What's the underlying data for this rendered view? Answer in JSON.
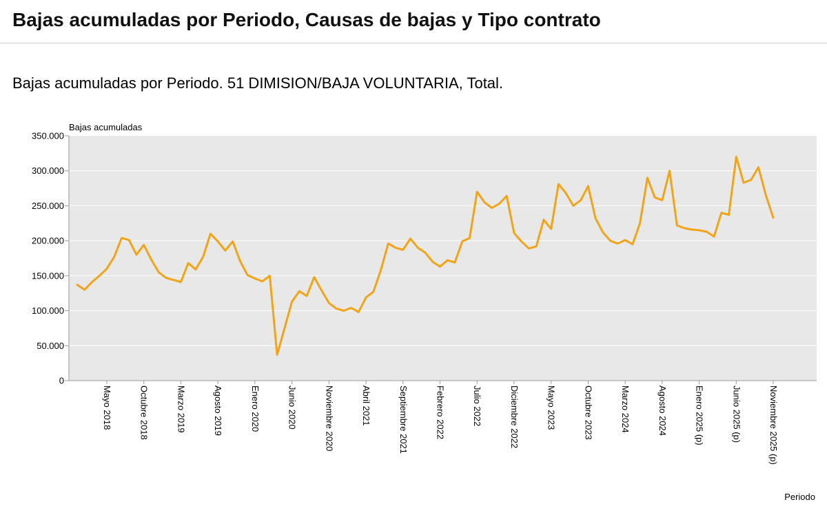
{
  "page": {
    "title": "Bajas acumuladas por Periodo, Causas de bajas y Tipo contrato",
    "subtitle": "Bajas acumuladas por Periodo. 51 DIMISION/BAJA VOLUNTARIA, Total."
  },
  "chart_data": {
    "type": "line",
    "title": "Bajas acumuladas por Periodo. 51 DIMISION/BAJA VOLUNTARIA, Total.",
    "ylabel": "Bajas acumuladas",
    "xlabel": "Periodo",
    "ylim": [
      0,
      350000
    ],
    "ytick_step": 50000,
    "ytick_labels": [
      "0",
      "50.000",
      "100.000",
      "150.000",
      "200.000",
      "250.000",
      "300.000",
      "350.000"
    ],
    "grid": "horizontal white gridlines on gray plot background",
    "legend": "none",
    "line_color": "#f2a416",
    "plot_bg": "#e8e8e8",
    "tick_every": 5,
    "first_tick_index": 4,
    "tick_labels": [
      "Mayo 2018",
      "Octubre 2018",
      "Marzo 2019",
      "Agosto 2019",
      "Enero 2020",
      "Junio 2020",
      "Noviembre 2020",
      "Abril 2021",
      "Septiembre 2021",
      "Febrero 2022",
      "Julio 2022",
      "Diciembre 2022",
      "Mayo 2023",
      "Octubre 2023",
      "Marzo 2024",
      "Agosto 2024",
      "Enero 2025 (p)",
      "Junio 2025 (p)",
      "Noviembre 2025 (p)"
    ],
    "x": [
      "Enero 2018",
      "Febrero 2018",
      "Marzo 2018",
      "Abril 2018",
      "Mayo 2018",
      "Junio 2018",
      "Julio 2018",
      "Agosto 2018",
      "Septiembre 2018",
      "Octubre 2018",
      "Noviembre 2018",
      "Diciembre 2018",
      "Enero 2019",
      "Febrero 2019",
      "Marzo 2019",
      "Abril 2019",
      "Mayo 2019",
      "Junio 2019",
      "Julio 2019",
      "Agosto 2019",
      "Septiembre 2019",
      "Octubre 2019",
      "Noviembre 2019",
      "Diciembre 2019",
      "Enero 2020",
      "Febrero 2020",
      "Marzo 2020",
      "Abril 2020",
      "Mayo 2020",
      "Junio 2020",
      "Julio 2020",
      "Agosto 2020",
      "Septiembre 2020",
      "Octubre 2020",
      "Noviembre 2020",
      "Diciembre 2020",
      "Enero 2021",
      "Febrero 2021",
      "Marzo 2021",
      "Abril 2021",
      "Mayo 2021",
      "Junio 2021",
      "Julio 2021",
      "Agosto 2021",
      "Septiembre 2021",
      "Octubre 2021",
      "Noviembre 2021",
      "Diciembre 2021",
      "Enero 2022",
      "Febrero 2022",
      "Marzo 2022",
      "Abril 2022",
      "Mayo 2022",
      "Junio 2022",
      "Julio 2022",
      "Agosto 2022",
      "Septiembre 2022",
      "Octubre 2022",
      "Noviembre 2022",
      "Diciembre 2022",
      "Enero 2023",
      "Febrero 2023",
      "Marzo 2023",
      "Abril 2023",
      "Mayo 2023",
      "Junio 2023",
      "Julio 2023",
      "Agosto 2023",
      "Septiembre 2023",
      "Octubre 2023",
      "Noviembre 2023",
      "Diciembre 2023",
      "Enero 2024",
      "Febrero 2024",
      "Marzo 2024",
      "Abril 2024",
      "Mayo 2024",
      "Junio 2024",
      "Julio 2024",
      "Agosto 2024",
      "Septiembre 2024",
      "Octubre 2024",
      "Noviembre 2024",
      "Diciembre 2024",
      "Enero 2025 (p)",
      "Febrero 2025 (p)",
      "Marzo 2025 (p)",
      "Abril 2025 (p)",
      "Mayo 2025 (p)",
      "Junio 2025 (p)",
      "Julio 2025 (p)",
      "Agosto 2025 (p)",
      "Septiembre 2025 (p)",
      "Octubre 2025 (p)",
      "Noviembre 2025 (p)"
    ],
    "values": [
      137000,
      130000,
      141000,
      150000,
      160000,
      177000,
      204000,
      201000,
      180000,
      194000,
      173000,
      155000,
      147000,
      144000,
      141000,
      168000,
      159000,
      177000,
      210000,
      199000,
      186000,
      199000,
      171000,
      151000,
      146000,
      142000,
      150000,
      37000,
      75000,
      113000,
      128000,
      121000,
      148000,
      129000,
      111000,
      103000,
      100000,
      104000,
      98000,
      119000,
      127000,
      158000,
      196000,
      190000,
      187000,
      203000,
      190000,
      183000,
      170000,
      163000,
      172000,
      169000,
      199000,
      204000,
      270000,
      255000,
      247000,
      253000,
      264000,
      211000,
      199000,
      189000,
      192000,
      230000,
      217000,
      281000,
      268000,
      250000,
      258000,
      278000,
      232000,
      212000,
      200000,
      196000,
      201000,
      195000,
      225000,
      290000,
      262000,
      258000,
      300000,
      222000,
      218000,
      216000,
      215000,
      213000,
      206000,
      240000,
      237000,
      320000,
      283000,
      287000,
      305000,
      265000,
      233000
    ]
  }
}
